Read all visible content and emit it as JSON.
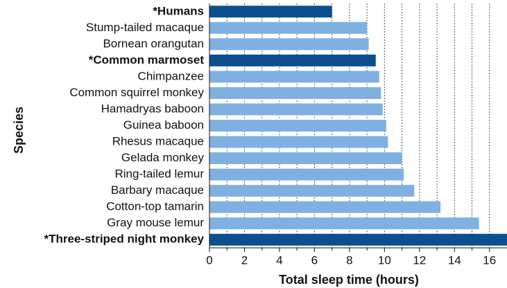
{
  "chart_data": {
    "type": "barh",
    "x_label": "Total sleep time (hours)",
    "y_label": "Species",
    "categories": [
      "*Humans",
      "Stump-tailed macaque",
      "Bornean orangutan",
      "*Common marmoset",
      "Chimpanzee",
      "Common squirrel monkey",
      "Hamadryas baboon",
      "Guinea baboon",
      "Rhesus macaque",
      "Gelada monkey",
      "Ring-tailed lemur",
      "Barbary macaque",
      "Cotton-top tamarin",
      "Gray mouse lemur",
      "*Three-striped night monkey"
    ],
    "values": [
      7.0,
      9.0,
      9.1,
      9.5,
      9.7,
      9.8,
      9.9,
      10.1,
      10.2,
      11.0,
      11.1,
      11.7,
      13.2,
      15.4,
      17.0
    ],
    "color": "#7eb1e1",
    "highlight_color": "#0b4f8f",
    "colors": [
      "#0b4f8f",
      "#7eb1e1",
      "#7eb1e1",
      "#0b4f8f",
      "#7eb1e1",
      "#7eb1e1",
      "#7eb1e1",
      "#7eb1e1",
      "#7eb1e1",
      "#7eb1e1",
      "#7eb1e1",
      "#7eb1e1",
      "#7eb1e1",
      "#7eb1e1",
      "#0b4f8f"
    ],
    "xlim": [
      0,
      17
    ],
    "xticks": [
      0,
      2,
      4,
      6,
      8,
      10,
      12,
      14,
      16
    ],
    "xminorticks": [
      1,
      3,
      5,
      7,
      9,
      11,
      13,
      15
    ],
    "grid": true
  }
}
